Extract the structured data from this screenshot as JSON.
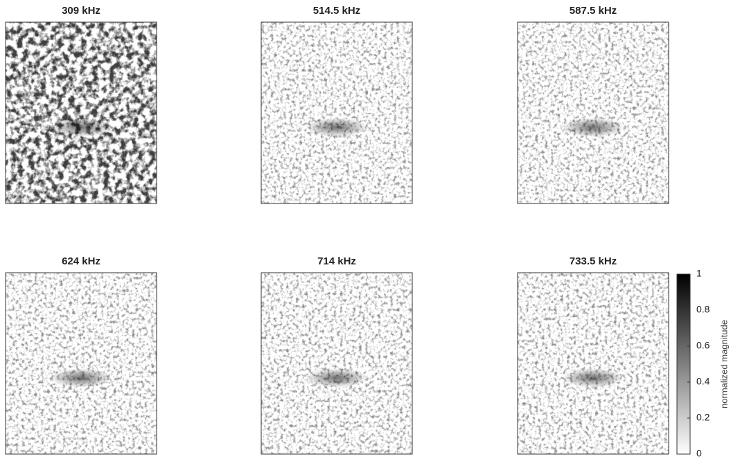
{
  "chart_data": {
    "type": "heatmap-grid",
    "panels": [
      {
        "title": "309 kHz"
      },
      {
        "title": "514.5 kHz"
      },
      {
        "title": "587.5 kHz"
      },
      {
        "title": "624 kHz"
      },
      {
        "title": "714 kHz"
      },
      {
        "title": "733.5 kHz"
      }
    ],
    "colorbar": {
      "label": "normalized magnitude",
      "lim": [
        0,
        1
      ],
      "ticks": [
        0,
        0.2,
        0.4,
        0.6,
        0.8,
        1
      ],
      "colors": [
        "#ffffff",
        "#000000"
      ]
    }
  }
}
